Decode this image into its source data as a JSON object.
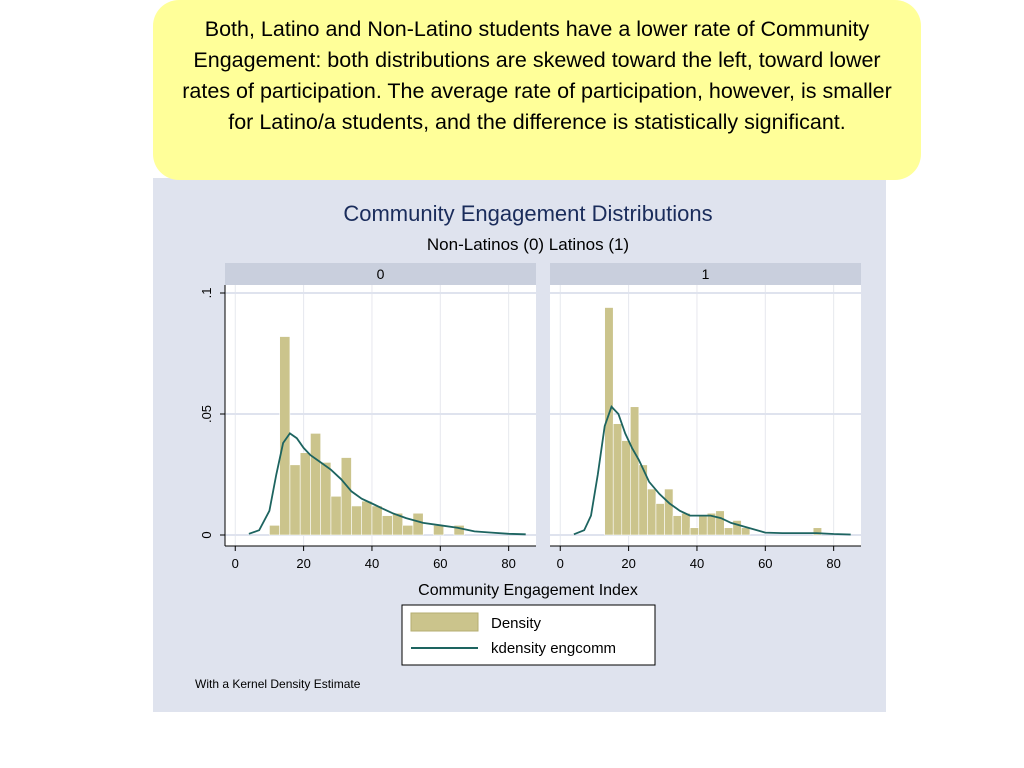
{
  "callout": {
    "text": "Both, Latino and Non-Latino students have a lower rate of Community Engagement: both distributions are skewed toward the left, toward lower rates of participation. The average rate of participation, however, is smaller for Latino/a students, and the difference is statistically significant."
  },
  "colors": {
    "callout_bg": "#ffff99",
    "graph_bg": "#dfe3ee",
    "title": "#1a2c5b",
    "bar_fill": "#cbc48c",
    "kdensity_line": "#1d6460"
  },
  "chart_data": {
    "type": "bar",
    "title": "Community Engagement Distributions",
    "subtitle": "Non-Latinos (0) Latinos (1)",
    "xlabel": "Community Engagement Index",
    "ylabel": "",
    "xlim": [
      -3,
      88
    ],
    "ylim": [
      0,
      0.1
    ],
    "xticks": [
      0,
      20,
      40,
      60,
      80
    ],
    "yticks": [
      0,
      0.05,
      0.1
    ],
    "ytick_labels": [
      "0",
      ".05",
      ".1"
    ],
    "grid": true,
    "legend": {
      "position": "bottom-center",
      "entries": [
        "Density",
        "kdensity engcomm"
      ]
    },
    "note": "With a Kernel Density Estimate",
    "panels": [
      {
        "label": "0",
        "bars": [
          {
            "x0": 10,
            "x1": 13,
            "y": 0.004
          },
          {
            "x0": 13,
            "x1": 16,
            "y": 0.082
          },
          {
            "x0": 16,
            "x1": 19,
            "y": 0.029
          },
          {
            "x0": 19,
            "x1": 22,
            "y": 0.034
          },
          {
            "x0": 22,
            "x1": 25,
            "y": 0.042
          },
          {
            "x0": 25,
            "x1": 28,
            "y": 0.03
          },
          {
            "x0": 28,
            "x1": 31,
            "y": 0.016
          },
          {
            "x0": 31,
            "x1": 34,
            "y": 0.032
          },
          {
            "x0": 34,
            "x1": 37,
            "y": 0.012
          },
          {
            "x0": 37,
            "x1": 40,
            "y": 0.014
          },
          {
            "x0": 40,
            "x1": 43,
            "y": 0.012
          },
          {
            "x0": 43,
            "x1": 46,
            "y": 0.008
          },
          {
            "x0": 46,
            "x1": 49,
            "y": 0.009
          },
          {
            "x0": 49,
            "x1": 52,
            "y": 0.004
          },
          {
            "x0": 52,
            "x1": 55,
            "y": 0.009
          },
          {
            "x0": 58,
            "x1": 61,
            "y": 0.004
          },
          {
            "x0": 64,
            "x1": 67,
            "y": 0.004
          }
        ],
        "kdensity": {
          "x": [
            4,
            7,
            10,
            12,
            14,
            16,
            18,
            20,
            22,
            25,
            28,
            31,
            34,
            37,
            40,
            43,
            46,
            50,
            55,
            60,
            65,
            70,
            75,
            80,
            85
          ],
          "y": [
            0.0005,
            0.002,
            0.01,
            0.025,
            0.038,
            0.042,
            0.04,
            0.036,
            0.033,
            0.03,
            0.027,
            0.023,
            0.018,
            0.015,
            0.013,
            0.011,
            0.009,
            0.007,
            0.005,
            0.004,
            0.003,
            0.0015,
            0.001,
            0.0005,
            0.0003
          ]
        }
      },
      {
        "label": "1",
        "bars": [
          {
            "x0": 13,
            "x1": 15.5,
            "y": 0.094
          },
          {
            "x0": 15.5,
            "x1": 18,
            "y": 0.046
          },
          {
            "x0": 18,
            "x1": 20.5,
            "y": 0.039
          },
          {
            "x0": 20.5,
            "x1": 23,
            "y": 0.053
          },
          {
            "x0": 23,
            "x1": 25.5,
            "y": 0.029
          },
          {
            "x0": 25.5,
            "x1": 28,
            "y": 0.019
          },
          {
            "x0": 28,
            "x1": 30.5,
            "y": 0.013
          },
          {
            "x0": 30.5,
            "x1": 33,
            "y": 0.019
          },
          {
            "x0": 33,
            "x1": 35.5,
            "y": 0.008
          },
          {
            "x0": 35.5,
            "x1": 38,
            "y": 0.009
          },
          {
            "x0": 38,
            "x1": 40.5,
            "y": 0.003
          },
          {
            "x0": 40.5,
            "x1": 43,
            "y": 0.008
          },
          {
            "x0": 43,
            "x1": 45.5,
            "y": 0.009
          },
          {
            "x0": 45.5,
            "x1": 48,
            "y": 0.01
          },
          {
            "x0": 48,
            "x1": 50.5,
            "y": 0.003
          },
          {
            "x0": 50.5,
            "x1": 53,
            "y": 0.006
          },
          {
            "x0": 53,
            "x1": 55.5,
            "y": 0.003
          },
          {
            "x0": 74,
            "x1": 76.5,
            "y": 0.003
          }
        ],
        "kdensity": {
          "x": [
            4,
            7,
            9,
            11,
            13,
            15,
            17,
            19,
            21,
            23,
            26,
            29,
            32,
            35,
            38,
            41,
            44,
            47,
            50,
            55,
            60,
            65,
            70,
            75,
            80,
            85
          ],
          "y": [
            0.0003,
            0.002,
            0.008,
            0.025,
            0.045,
            0.053,
            0.05,
            0.042,
            0.036,
            0.031,
            0.022,
            0.017,
            0.013,
            0.01,
            0.008,
            0.008,
            0.008,
            0.007,
            0.005,
            0.003,
            0.001,
            0.0008,
            0.0008,
            0.0008,
            0.0004,
            0.0002
          ]
        }
      }
    ]
  }
}
